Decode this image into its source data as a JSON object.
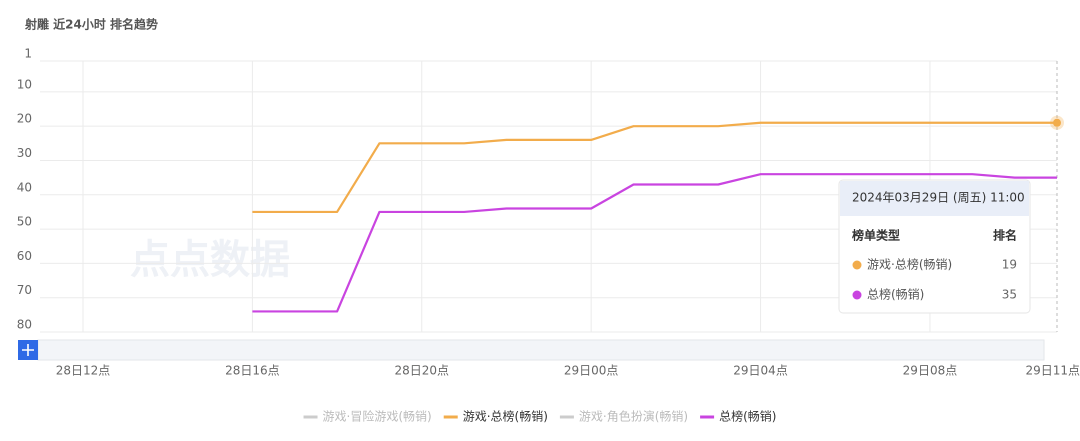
{
  "chart_data": {
    "type": "line",
    "title": "射雕 近24小时 排名趋势",
    "watermark": "点点数据",
    "y_inverted": true,
    "ylim": [
      1,
      80
    ],
    "yticks": [
      1,
      10,
      20,
      30,
      40,
      50,
      60,
      70,
      80
    ],
    "grid": true,
    "legend": "bottom",
    "categories": [
      "28日12点",
      null,
      null,
      null,
      "28日16点",
      null,
      null,
      null,
      "28日20点",
      null,
      null,
      null,
      "29日00点",
      null,
      null,
      null,
      "29日04点",
      null,
      null,
      null,
      "29日08点",
      null,
      null,
      "29日11点"
    ],
    "series": [
      {
        "name": "游戏·冒险游戏(畅销)",
        "color": "#cccccc",
        "visible": false,
        "values": [
          null,
          null,
          null,
          null,
          null,
          null,
          null,
          null,
          null,
          null,
          null,
          null,
          null,
          null,
          null,
          null,
          null,
          null,
          null,
          null,
          null,
          null,
          null,
          null
        ]
      },
      {
        "name": "游戏·总榜(畅销)",
        "color": "#f2ac4b",
        "visible": true,
        "values": [
          null,
          null,
          null,
          null,
          45,
          45,
          45,
          25,
          25,
          25,
          24,
          24,
          24,
          20,
          20,
          20,
          19,
          19,
          19,
          19,
          19,
          19,
          19,
          19
        ]
      },
      {
        "name": "游戏·角色扮演(畅销)",
        "color": "#cccccc",
        "visible": false,
        "values": [
          null,
          null,
          null,
          null,
          null,
          null,
          null,
          null,
          null,
          null,
          null,
          null,
          null,
          null,
          null,
          null,
          null,
          null,
          null,
          null,
          null,
          null,
          null,
          null
        ]
      },
      {
        "name": "总榜(畅销)",
        "color": "#c944e0",
        "visible": true,
        "values": [
          null,
          null,
          null,
          null,
          74,
          74,
          74,
          45,
          45,
          45,
          44,
          44,
          44,
          37,
          37,
          37,
          34,
          34,
          34,
          34,
          34,
          34,
          35,
          35
        ]
      }
    ],
    "tooltip": {
      "title": "2024年03月29日 (周五) 11:00",
      "col_type": "榜单类型",
      "col_rank": "排名"
    }
  }
}
